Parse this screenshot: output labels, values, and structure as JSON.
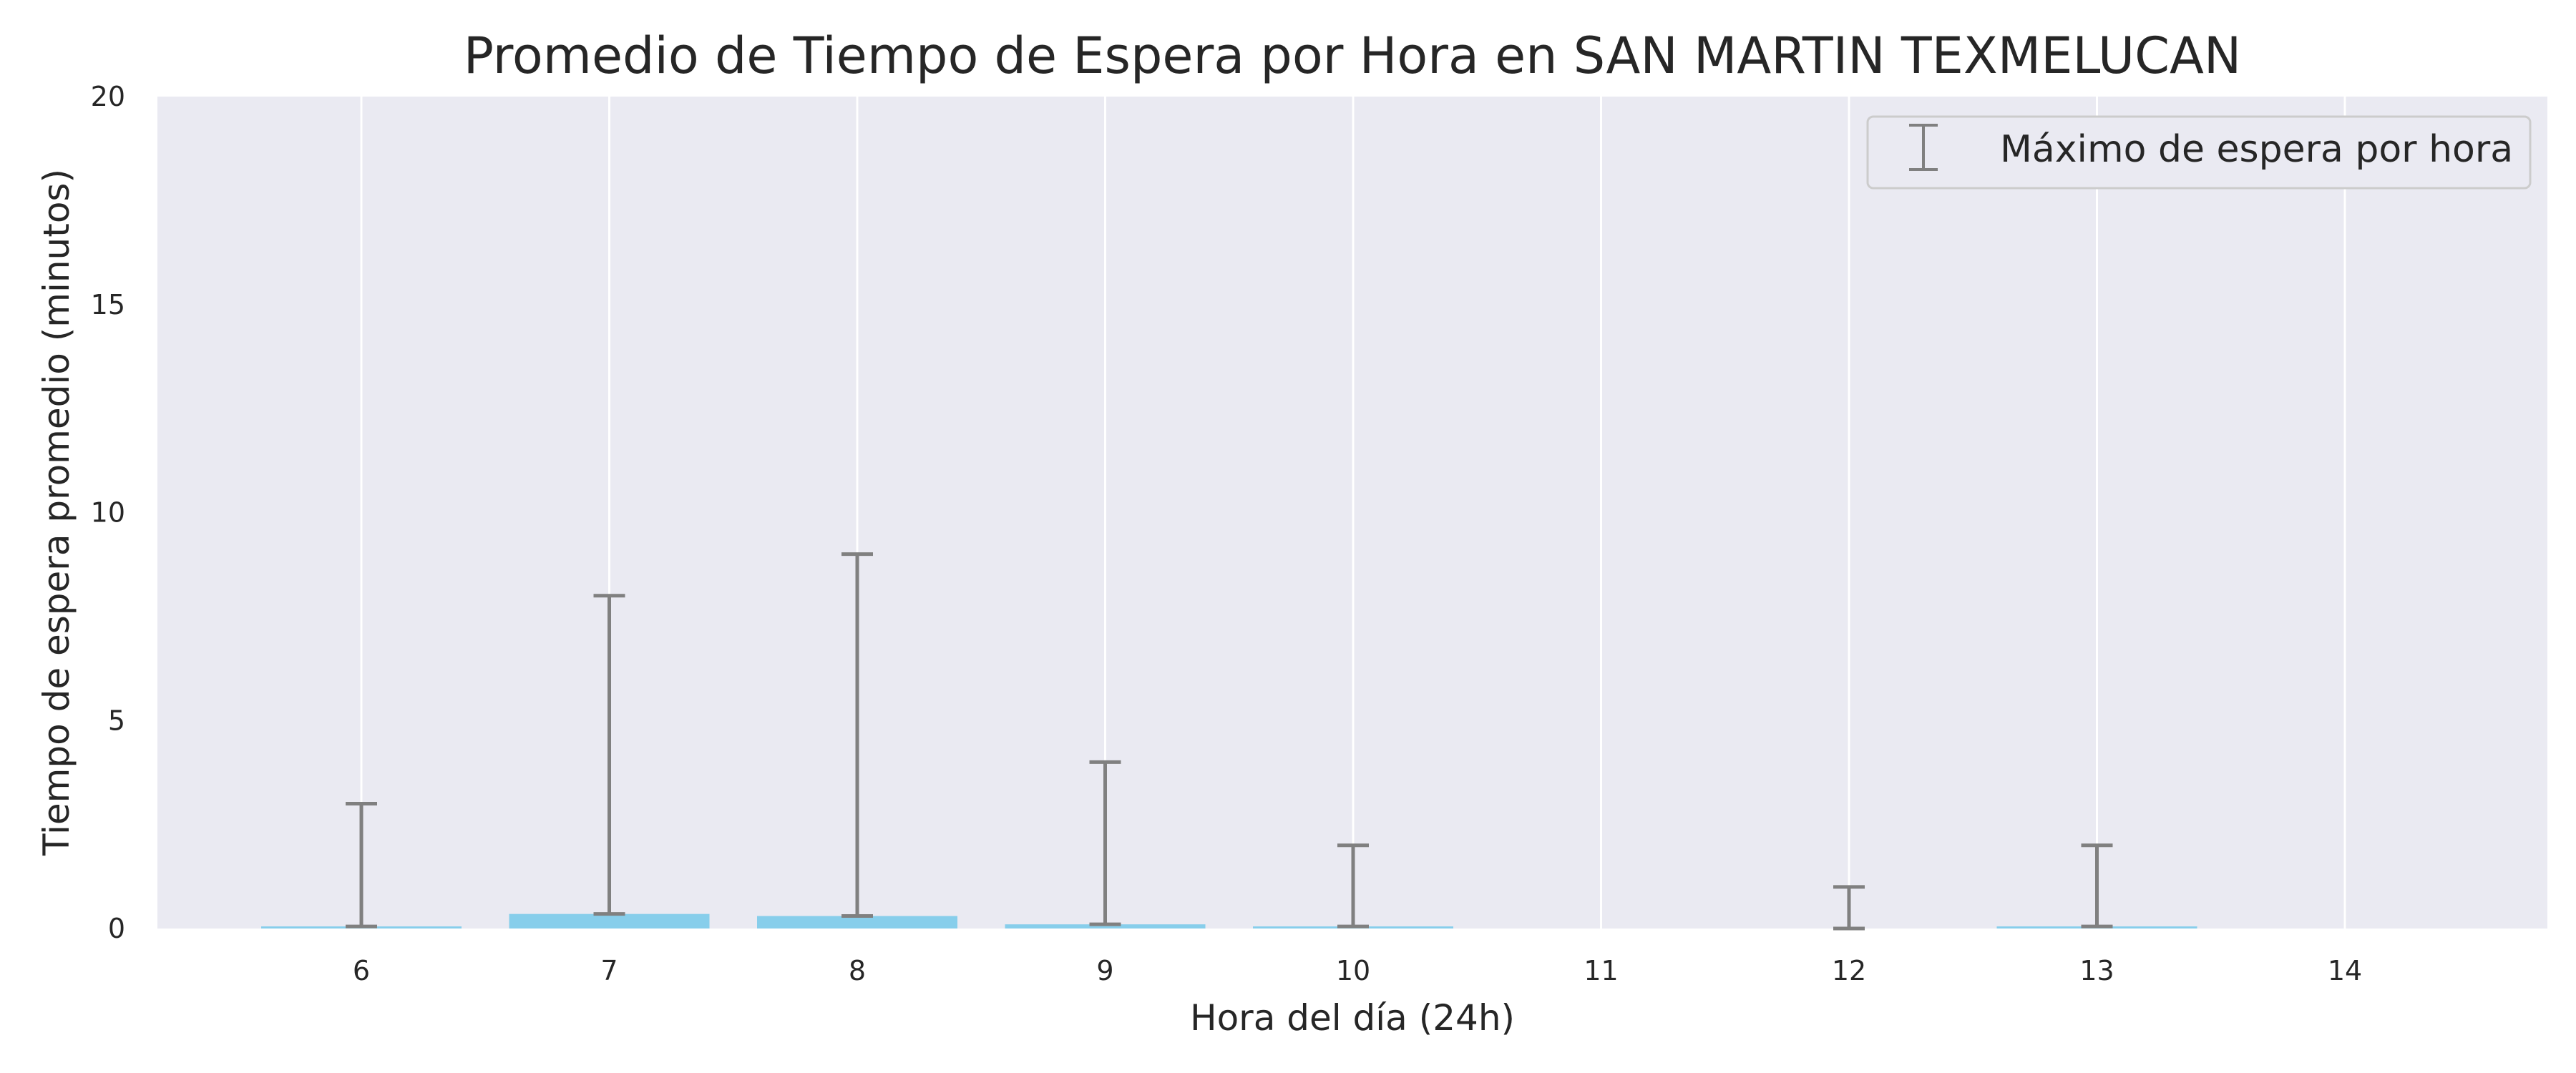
{
  "chart_data": {
    "type": "bar",
    "title": "Promedio de Tiempo de Espera por Hora en SAN MARTIN TEXMELUCAN",
    "xlabel": "Hora del día (24h)",
    "ylabel": "Tiempo de espera promedio (minutos)",
    "categories": [
      "6",
      "7",
      "8",
      "9",
      "10",
      "11",
      "12",
      "13",
      "14"
    ],
    "values": [
      0.05,
      0.35,
      0.3,
      0.1,
      0.05,
      0.0,
      0.0,
      0.05,
      0.0
    ],
    "max_values": [
      3,
      8,
      9,
      4,
      2,
      0,
      1,
      2,
      0
    ],
    "ylim": [
      0,
      20
    ],
    "yticks": [
      0,
      5,
      10,
      15,
      20
    ],
    "grid": "vertical",
    "legend": {
      "position": "top-right",
      "entries": [
        "Máximo de espera por hora"
      ]
    },
    "colors": {
      "bar": "#87ceeb",
      "errorbar": "#808080",
      "plot_background": "#eaeaf2",
      "grid": "#ffffff"
    }
  }
}
